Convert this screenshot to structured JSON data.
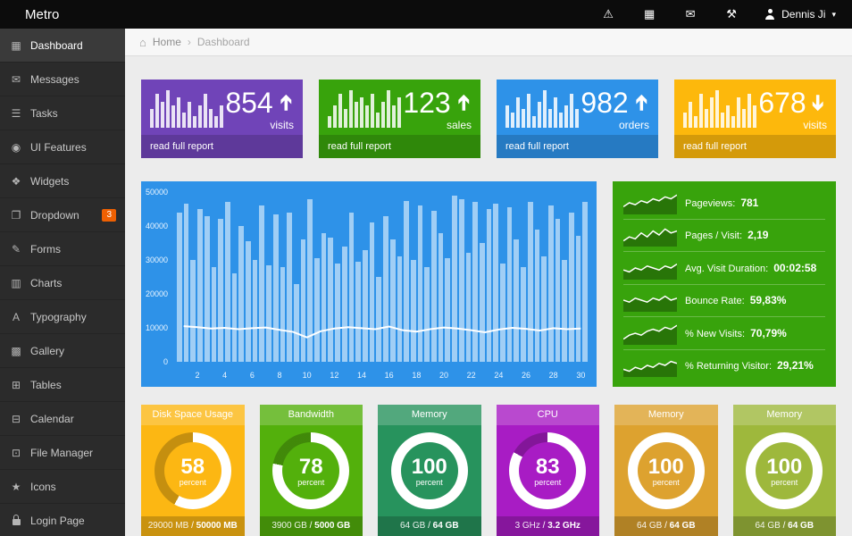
{
  "glyphs": {
    "arrow": "➔",
    "caret": "▾"
  },
  "topbar": {
    "brand": "Metro",
    "icons": [
      {
        "name": "alert-icon",
        "glyph": "⚠"
      },
      {
        "name": "grid-icon",
        "glyph": "▦"
      },
      {
        "name": "mail-icon",
        "glyph": "✉"
      },
      {
        "name": "tools-icon",
        "glyph": "⚒"
      }
    ],
    "user": {
      "name": "Dennis Ji"
    }
  },
  "sidebar": {
    "items": [
      {
        "id": "dashboard",
        "label": "Dashboard",
        "icon": "dashboard-icon",
        "glyph": "▦",
        "active": true
      },
      {
        "id": "messages",
        "label": "Messages",
        "icon": "envelope-icon",
        "glyph": "✉"
      },
      {
        "id": "tasks",
        "label": "Tasks",
        "icon": "list-icon",
        "glyph": "☰"
      },
      {
        "id": "ui-features",
        "label": "UI Features",
        "icon": "eye-icon",
        "glyph": "◉"
      },
      {
        "id": "widgets",
        "label": "Widgets",
        "icon": "widgets-icon",
        "glyph": "❖"
      },
      {
        "id": "dropdown",
        "label": "Dropdown",
        "icon": "folder-icon",
        "glyph": "❐",
        "badge": "3"
      },
      {
        "id": "forms",
        "label": "Forms",
        "icon": "pencil-icon",
        "glyph": "✎"
      },
      {
        "id": "charts",
        "label": "Charts",
        "icon": "bar-chart-icon",
        "glyph": "▥"
      },
      {
        "id": "typography",
        "label": "Typography",
        "icon": "typography-icon",
        "glyph": "A"
      },
      {
        "id": "gallery",
        "label": "Gallery",
        "icon": "image-icon",
        "glyph": "▩"
      },
      {
        "id": "tables",
        "label": "Tables",
        "icon": "table-icon",
        "glyph": "⊞"
      },
      {
        "id": "calendar",
        "label": "Calendar",
        "icon": "calendar-icon",
        "glyph": "⊟"
      },
      {
        "id": "file-manager",
        "label": "File Manager",
        "icon": "folder-open-icon",
        "glyph": "⊡"
      },
      {
        "id": "icons",
        "label": "Icons",
        "icon": "star-icon",
        "glyph": "★"
      },
      {
        "id": "login-page",
        "label": "Login Page",
        "icon": "lock-icon",
        "glyph": "",
        "icon_css": "lock"
      }
    ]
  },
  "breadcrumb": {
    "home_glyph": "⌂",
    "items": [
      "Home",
      "Dashboard"
    ],
    "separator": "›"
  },
  "stats": [
    {
      "value": "854",
      "direction": "up",
      "label": "visits",
      "link": "read full report",
      "color": "#7044b8",
      "spark": [
        0.5,
        0.9,
        0.7,
        1,
        0.6,
        0.8,
        0.4,
        0.7,
        0.3,
        0.6,
        0.9,
        0.5,
        0.3,
        0.6
      ]
    },
    {
      "value": "123",
      "direction": "up",
      "label": "sales",
      "link": "read full report",
      "color": "#38a30c",
      "spark": [
        0.3,
        0.6,
        0.9,
        0.5,
        1,
        0.7,
        0.8,
        0.6,
        0.9,
        0.4,
        0.7,
        1,
        0.6,
        0.8
      ]
    },
    {
      "value": "982",
      "direction": "up",
      "label": "orders",
      "link": "read full report",
      "color": "#2e92e8",
      "spark": [
        0.6,
        0.4,
        0.8,
        0.5,
        0.9,
        0.3,
        0.7,
        1,
        0.5,
        0.8,
        0.4,
        0.6,
        0.9,
        0.5
      ]
    },
    {
      "value": "678",
      "direction": "down",
      "label": "visits",
      "link": "read full report",
      "color": "#fdb80c",
      "spark": [
        0.4,
        0.7,
        0.3,
        0.9,
        0.5,
        0.8,
        1,
        0.4,
        0.6,
        0.3,
        0.8,
        0.5,
        0.9,
        0.6
      ]
    }
  ],
  "chart_data": {
    "type": "bar",
    "title": "",
    "xlabel": "",
    "ylabel": "",
    "grid": false,
    "legend": false,
    "panel_color": "#2e92e8",
    "bar_color": "rgba(255,255,255,0.55)",
    "line_color": "#ffffff",
    "ylim": [
      0,
      50000
    ],
    "y_tick_labels": [
      50000,
      40000,
      30000,
      20000,
      10000,
      0
    ],
    "x_tick_labels": [
      2,
      4,
      6,
      8,
      10,
      12,
      14,
      16,
      18,
      20,
      22,
      24,
      26,
      28,
      30
    ],
    "values": [
      44000,
      46500,
      30000,
      45000,
      43000,
      28000,
      42000,
      47000,
      26000,
      40000,
      35500,
      30000,
      46000,
      28500,
      43500,
      28000,
      44000,
      23000,
      36000,
      48000,
      30500,
      38000,
      36500,
      29000,
      34000,
      44000,
      29500,
      33000,
      41000,
      25000,
      43000,
      36000,
      31000,
      47500,
      30000,
      46000,
      28000,
      44500,
      38000,
      30500,
      49000,
      48000,
      32000,
      47000,
      35000,
      45000,
      46500,
      29000,
      45500,
      36000,
      28000,
      47000,
      39000,
      31000,
      46000,
      42000,
      30000,
      44000,
      37000,
      47000
    ],
    "line_overlay": {
      "name": "trend",
      "values": [
        10500,
        10200,
        9800,
        10000,
        9600,
        9900,
        10100,
        9400,
        8800,
        7200,
        9000,
        9800,
        10200,
        9900,
        9600,
        10400,
        9300,
        8900,
        9600,
        10100,
        9800,
        9300,
        8700,
        9500,
        10000,
        9700,
        9200,
        9900,
        9600,
        9800
      ]
    }
  },
  "analytics": {
    "color": "#38a30c",
    "rows": [
      {
        "label": "Pageviews:",
        "value": "781",
        "spark": [
          3,
          5,
          4,
          6,
          5,
          7,
          6,
          8,
          7,
          9
        ]
      },
      {
        "label": "Pages / Visit:",
        "value": "2,19",
        "spark": [
          2,
          4,
          3,
          6,
          4,
          7,
          5,
          8,
          6,
          7
        ]
      },
      {
        "label": "Avg. Visit Duration:",
        "value": "00:02:58",
        "spark": [
          4,
          3,
          5,
          4,
          6,
          5,
          4,
          6,
          5,
          7
        ]
      },
      {
        "label": "Bounce Rate:",
        "value": "59,83%",
        "spark": [
          5,
          4,
          6,
          5,
          4,
          6,
          5,
          7,
          5,
          6
        ]
      },
      {
        "label": "% New Visits:",
        "value": "70,79%",
        "spark": [
          2,
          4,
          5,
          4,
          6,
          7,
          6,
          8,
          7,
          9
        ]
      },
      {
        "label": "% Returning Visitor:",
        "value": "29,21%",
        "spark": [
          3,
          2,
          4,
          3,
          5,
          4,
          6,
          5,
          7,
          6
        ]
      }
    ]
  },
  "gauges": [
    {
      "title": "Disk Space Usage",
      "percent": 58,
      "percent_label": "percent",
      "used": "29000 MB",
      "total": "50000 MB",
      "color": "#fcb713"
    },
    {
      "title": "Bandwidth",
      "percent": 78,
      "percent_label": "percent",
      "used": "3900 GB",
      "total": "5000 GB",
      "color": "#53b00c"
    },
    {
      "title": "Memory",
      "percent": 100,
      "percent_label": "percent",
      "used": "64 GB",
      "total": "64 GB",
      "color": "#27935d"
    },
    {
      "title": "CPU",
      "percent": 83,
      "percent_label": "percent",
      "used": "3 GHz",
      "total": "3.2 GHz",
      "color": "#a81cc4"
    },
    {
      "title": "Memory",
      "percent": 100,
      "percent_label": "percent",
      "used": "64 GB",
      "total": "64 GB",
      "color": "#dda22f"
    },
    {
      "title": "Memory",
      "percent": 100,
      "percent_label": "percent",
      "used": "64 GB",
      "total": "64 GB",
      "color": "#9eb83c"
    }
  ]
}
